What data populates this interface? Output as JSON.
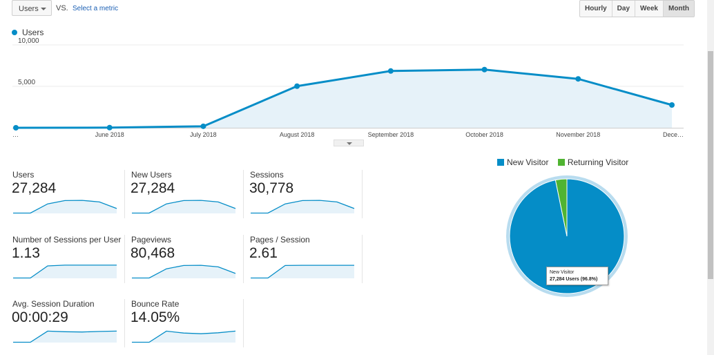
{
  "toolbar": {
    "metric_label": "Users",
    "vs_label": "VS.",
    "select_metric_label": "Select a metric",
    "granularity": [
      {
        "label": "Hourly",
        "active": false
      },
      {
        "label": "Day",
        "active": false
      },
      {
        "label": "Week",
        "active": false
      },
      {
        "label": "Month",
        "active": true
      }
    ]
  },
  "chart_data": [
    {
      "type": "area",
      "series": [
        {
          "name": "Users",
          "color": "#058dc7",
          "values": [
            0,
            20,
            180,
            5020,
            6850,
            7020,
            5900,
            2750
          ]
        }
      ],
      "categories": [
        "…",
        "June 2018",
        "July 2018",
        "August 2018",
        "September 2018",
        "October 2018",
        "November 2018",
        "Dece…"
      ],
      "y_ticks": [
        "10,000",
        "5,000"
      ],
      "ylim": [
        0,
        10000
      ],
      "grid": true,
      "legend": "top-left"
    },
    {
      "type": "pie",
      "categories": [
        "New Visitor",
        "Returning Visitor"
      ],
      "values": [
        96.8,
        3.2
      ],
      "colors": [
        "#058dc7",
        "#50b432"
      ],
      "legend": "top"
    }
  ],
  "metrics": [
    {
      "label": "Users",
      "value": "27,284",
      "spark": [
        0,
        0,
        0.7,
        0.95,
        0.97,
        0.85,
        0.35
      ],
      "style": "curve"
    },
    {
      "label": "New Users",
      "value": "27,284",
      "spark": [
        0,
        0,
        0.7,
        0.95,
        0.97,
        0.85,
        0.35
      ],
      "style": "curve"
    },
    {
      "label": "Sessions",
      "value": "30,778",
      "spark": [
        0,
        0,
        0.7,
        0.95,
        0.97,
        0.85,
        0.35
      ],
      "style": "curve"
    },
    {
      "label": "Number of Sessions per User",
      "value": "1.13",
      "spark": [
        0,
        0,
        0.92,
        0.98,
        0.98,
        0.98,
        0.98
      ],
      "style": "step"
    },
    {
      "label": "Pageviews",
      "value": "80,468",
      "spark": [
        0,
        0,
        0.7,
        0.95,
        0.97,
        0.85,
        0.35
      ],
      "style": "curve"
    },
    {
      "label": "Pages / Session",
      "value": "2.61",
      "spark": [
        0,
        0,
        0.95,
        0.97,
        0.97,
        0.97,
        0.97
      ],
      "style": "step"
    },
    {
      "label": "Avg. Session Duration",
      "value": "00:00:29",
      "spark": [
        0,
        0,
        0.85,
        0.8,
        0.78,
        0.82,
        0.85
      ],
      "style": "step"
    },
    {
      "label": "Bounce Rate",
      "value": "14.05%",
      "spark": [
        0,
        0,
        0.85,
        0.7,
        0.65,
        0.72,
        0.85
      ],
      "style": "step"
    }
  ],
  "tooltip": {
    "title": "New Visitor",
    "value": "27,284 Users (96.8%)"
  }
}
